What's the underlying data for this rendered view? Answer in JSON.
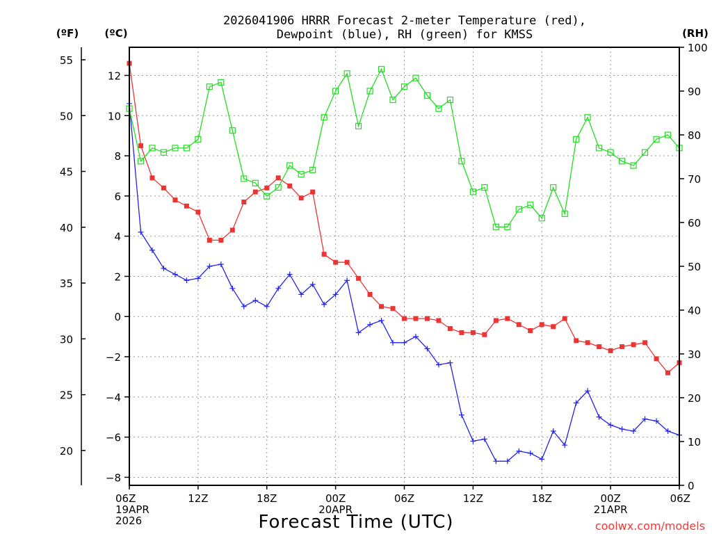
{
  "chart_data": {
    "type": "line",
    "title": [
      "2026041906 HRRR Forecast 2-meter Temperature (red),",
      "Dewpoint (blue), RH (green) for KMSS"
    ],
    "xlabel": "Forecast Time (UTC)",
    "credit": "coolwx.com/models",
    "axes": {
      "fahrenheit": {
        "label": "(ºF)",
        "ticks": [
          20,
          25,
          30,
          35,
          40,
          45,
          50,
          55
        ]
      },
      "celsius": {
        "label": "(ºC)",
        "ylim": [
          -8.4,
          13.4
        ],
        "ticks": [
          -8,
          -6,
          -4,
          -2,
          0,
          2,
          4,
          6,
          8,
          10,
          12
        ]
      },
      "rh": {
        "label": "(RH)",
        "ylim": [
          0,
          100
        ],
        "ticks": [
          0,
          10,
          20,
          30,
          40,
          50,
          60,
          70,
          80,
          90,
          100
        ]
      },
      "x": {
        "range_hours": [
          0,
          48
        ],
        "ticks": [
          {
            "hour": 0,
            "lines": [
              "06Z",
              "19APR",
              "2026"
            ]
          },
          {
            "hour": 6,
            "lines": [
              "12Z"
            ]
          },
          {
            "hour": 12,
            "lines": [
              "18Z"
            ]
          },
          {
            "hour": 18,
            "lines": [
              "00Z",
              "20APR"
            ]
          },
          {
            "hour": 24,
            "lines": [
              "06Z"
            ]
          },
          {
            "hour": 30,
            "lines": [
              "12Z"
            ]
          },
          {
            "hour": 36,
            "lines": [
              "18Z"
            ]
          },
          {
            "hour": 42,
            "lines": [
              "00Z",
              "21APR"
            ]
          },
          {
            "hour": 48,
            "lines": [
              "06Z"
            ]
          }
        ]
      }
    },
    "series": [
      {
        "name": "Temperature",
        "unit": "C",
        "color": "#ee3333",
        "marker": "filled-square",
        "values": [
          12.6,
          8.5,
          6.9,
          6.4,
          5.8,
          5.5,
          5.2,
          3.8,
          3.8,
          4.3,
          5.7,
          6.2,
          6.4,
          6.9,
          6.5,
          5.9,
          6.2,
          3.1,
          2.7,
          2.7,
          1.9,
          1.1,
          0.5,
          0.4,
          -0.1,
          -0.1,
          -0.1,
          -0.2,
          -0.6,
          -0.8,
          -0.8,
          -0.9,
          -0.2,
          -0.1,
          -0.4,
          -0.7,
          -0.4,
          -0.5,
          -0.1,
          -1.2,
          -1.3,
          -1.5,
          -1.7,
          -1.5,
          -1.4,
          -1.3,
          -2.1,
          -2.8,
          -2.3
        ]
      },
      {
        "name": "Dewpoint",
        "unit": "C",
        "color": "#2222ee",
        "marker": "plus",
        "values": [
          10.6,
          4.2,
          3.3,
          2.4,
          2.1,
          1.8,
          1.9,
          2.5,
          2.6,
          1.4,
          0.5,
          0.8,
          0.5,
          1.4,
          2.1,
          1.1,
          1.6,
          0.6,
          1.1,
          1.8,
          -0.8,
          -0.4,
          -0.2,
          -1.3,
          -1.3,
          -1.0,
          -1.6,
          -2.4,
          -2.3,
          -4.9,
          -6.2,
          -6.1,
          -7.2,
          -7.2,
          -6.7,
          -6.8,
          -7.1,
          -5.7,
          -6.4,
          -4.3,
          -3.7,
          -5.0,
          -5.4,
          -5.6,
          -5.7,
          -5.1,
          -5.2,
          -5.7,
          -5.9
        ]
      },
      {
        "name": "RH",
        "unit": "%",
        "color": "#22dd22",
        "marker": "open-square",
        "values": [
          86,
          74,
          77,
          76,
          77,
          77,
          79,
          91,
          92,
          81,
          70,
          69,
          66,
          68,
          73,
          71,
          72,
          84,
          90,
          94,
          82,
          90,
          95,
          88,
          91,
          93,
          89,
          86,
          88,
          74,
          67,
          68,
          59,
          59,
          63,
          64,
          61,
          68,
          62,
          79,
          84,
          77,
          76,
          74,
          73,
          76,
          79,
          80,
          77
        ]
      }
    ]
  }
}
